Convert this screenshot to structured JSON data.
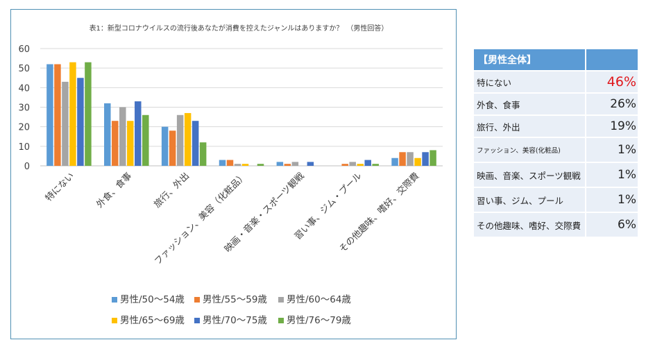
{
  "chart_data": {
    "type": "bar",
    "title": "表1：新型コロナウイルスの流行後あなたが消費を控えたジャンルはありますか？　（男性回答）",
    "categories": [
      "特にない",
      "外食、食事",
      "旅行、外出",
      "ファッション、美容（化粧品）",
      "映画・音楽・スポーツ観戦",
      "習い事、ジム・プール",
      "その他趣味、嗜好、交際費"
    ],
    "ylim": [
      0,
      60
    ],
    "yticks": [
      0,
      10,
      20,
      30,
      40,
      50,
      60
    ],
    "grid": true,
    "legend_position": "bottom",
    "series": [
      {
        "name": "男性/50〜54歳",
        "color": "#5b9bd5",
        "values": [
          52,
          32,
          20,
          3,
          2,
          0,
          4
        ]
      },
      {
        "name": "男性/55〜59歳",
        "color": "#ed7d31",
        "values": [
          52,
          23,
          18,
          3,
          1,
          1,
          7
        ]
      },
      {
        "name": "男性/60〜64歳",
        "color": "#a5a5a5",
        "values": [
          43,
          30,
          26,
          1,
          2,
          2,
          7
        ]
      },
      {
        "name": "男性/65〜69歳",
        "color": "#ffc000",
        "values": [
          53,
          23,
          27,
          1,
          0,
          1,
          4
        ]
      },
      {
        "name": "男性/70〜75歳",
        "color": "#4472c4",
        "values": [
          45,
          33,
          23,
          0,
          2,
          3,
          7
        ]
      },
      {
        "name": "男性/76〜79歳",
        "color": "#70ad47",
        "values": [
          53,
          26,
          12,
          1,
          0,
          1,
          8
        ]
      }
    ]
  },
  "summary_table": {
    "header": "【男性全体】",
    "header_value": "",
    "rows": [
      {
        "label": "特にない",
        "value": "46%",
        "highlight_color": "#e0161b"
      },
      {
        "label": "外食、食事",
        "value": "26%"
      },
      {
        "label": "旅行、外出",
        "value": "19%"
      },
      {
        "label": "ファッション、美容(化粧品)",
        "value": "1%"
      },
      {
        "label": "映画、音楽、スポーツ観戦",
        "value": "1%"
      },
      {
        "label": "習い事、ジム、プール",
        "value": "1%"
      },
      {
        "label": "その他趣味、嗜好、交際費",
        "value": "6%"
      }
    ]
  }
}
